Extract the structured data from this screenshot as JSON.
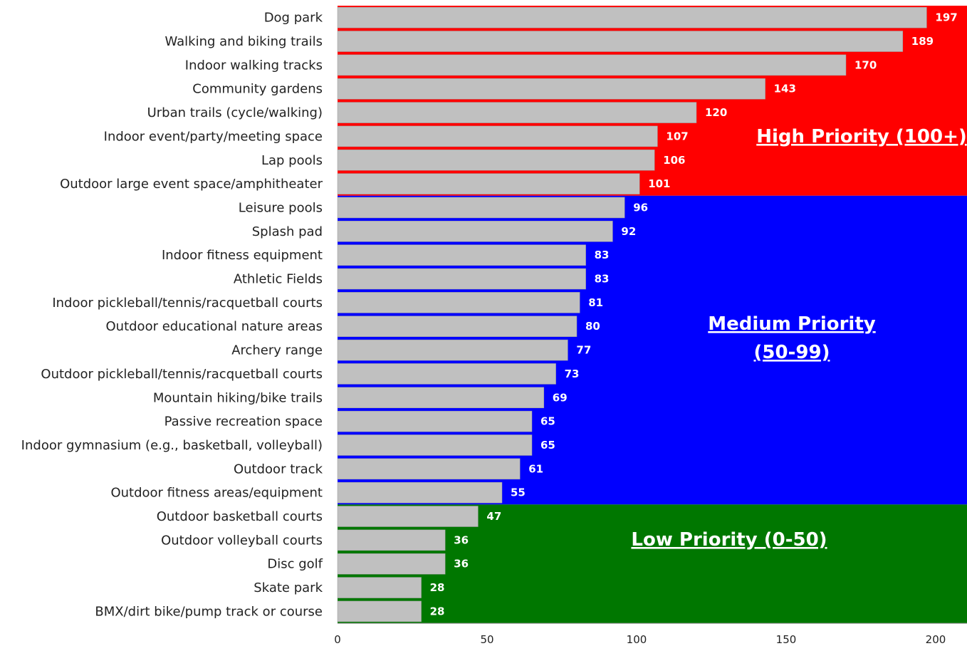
{
  "chart_data": {
    "type": "bar",
    "orientation": "horizontal",
    "categories": [
      "Dog park",
      "Walking and biking trails",
      "Indoor walking tracks",
      "Community gardens",
      "Urban trails (cycle/walking)",
      "Indoor event/party/meeting space",
      "Lap pools",
      "Outdoor large event space/amphitheater",
      "Leisure pools",
      "Splash pad",
      "Indoor fitness equipment",
      "Athletic Fields",
      "Indoor pickleball/tennis/racquetball courts",
      "Outdoor educational nature areas",
      "Archery range",
      "Outdoor pickleball/tennis/racquetball courts",
      "Mountain hiking/bike trails",
      "Passive recreation space",
      "Indoor gymnasium (e.g., basketball, volleyball)",
      "Outdoor track",
      "Outdoor fitness areas/equipment",
      "Outdoor basketball courts",
      "Outdoor volleyball courts",
      "Disc golf",
      "Skate park",
      "BMX/dirt bike/pump track or course"
    ],
    "values": [
      197,
      189,
      170,
      143,
      120,
      107,
      106,
      101,
      96,
      92,
      83,
      83,
      81,
      80,
      77,
      73,
      69,
      65,
      65,
      61,
      55,
      47,
      36,
      36,
      28,
      28
    ],
    "xlim": [
      0,
      210
    ],
    "x_ticks": [
      0,
      50,
      100,
      150,
      200
    ],
    "title": "",
    "xlabel": "",
    "ylabel": "",
    "grid": false,
    "bar_color": "#c0c0c0",
    "zones": [
      {
        "label_lines": [
          "High Priority (100+)"
        ],
        "color": "#ff0000",
        "categories_from": 0,
        "categories_to": 7
      },
      {
        "label_lines": [
          "Medium Priority",
          "(50-99)"
        ],
        "color": "#0000ff",
        "categories_from": 8,
        "categories_to": 20
      },
      {
        "label_lines": [
          "Low Priority (0-50)"
        ],
        "color": "#007700",
        "categories_from": 21,
        "categories_to": 25
      }
    ]
  }
}
